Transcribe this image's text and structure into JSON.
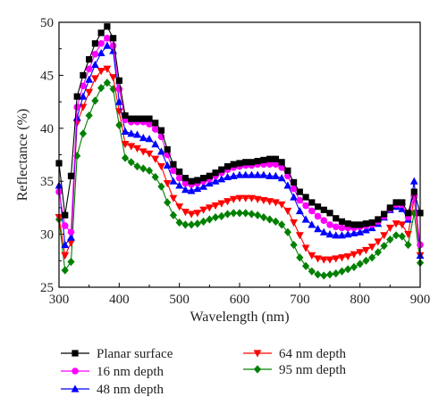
{
  "chart_data": {
    "type": "line",
    "xlabel": "Wavelength (nm)",
    "ylabel": "Reflectance (%)",
    "xlim": [
      300,
      900
    ],
    "ylim": [
      25,
      50
    ],
    "xticks": [
      300,
      400,
      500,
      600,
      700,
      800,
      900
    ],
    "yticks": [
      25,
      30,
      35,
      40,
      45,
      50
    ],
    "grid": false,
    "legend_position": "bottom",
    "x": [
      300,
      310,
      320,
      330,
      340,
      350,
      360,
      370,
      380,
      390,
      400,
      410,
      420,
      430,
      440,
      450,
      460,
      470,
      480,
      490,
      500,
      510,
      520,
      530,
      540,
      550,
      560,
      570,
      580,
      590,
      600,
      610,
      620,
      630,
      640,
      650,
      660,
      670,
      680,
      690,
      700,
      710,
      720,
      730,
      740,
      750,
      760,
      770,
      780,
      790,
      800,
      810,
      820,
      830,
      840,
      850,
      860,
      870,
      880,
      890,
      900
    ],
    "series": [
      {
        "name": "Planar surface",
        "color": "#000000",
        "marker": "square",
        "values": [
          36.7,
          31.8,
          35.5,
          43.0,
          45.0,
          46.5,
          48.0,
          49.0,
          49.6,
          48.5,
          44.5,
          41.2,
          40.9,
          40.9,
          40.9,
          40.9,
          40.5,
          39.8,
          38.0,
          36.6,
          35.9,
          35.3,
          35.0,
          35.1,
          35.3,
          35.5,
          35.8,
          36.1,
          36.4,
          36.6,
          36.7,
          36.8,
          36.8,
          36.9,
          37.0,
          37.1,
          37.1,
          36.8,
          36.0,
          34.9,
          34.0,
          33.5,
          33.0,
          32.6,
          32.3,
          32.0,
          31.5,
          31.2,
          31.0,
          30.9,
          30.9,
          31.0,
          31.1,
          31.4,
          31.9,
          32.5,
          33.0,
          33.0,
          32.0,
          34.0,
          32.0
        ]
      },
      {
        "name": "16 nm depth",
        "color": "#ff00ff",
        "marker": "circle",
        "values": [
          34.0,
          30.8,
          30.2,
          42.0,
          44.0,
          45.6,
          47.0,
          48.0,
          48.5,
          47.8,
          43.7,
          40.8,
          40.6,
          40.6,
          40.6,
          40.4,
          39.9,
          39.2,
          37.5,
          36.0,
          35.3,
          34.8,
          34.7,
          34.8,
          35.0,
          35.2,
          35.5,
          35.8,
          36.1,
          36.3,
          36.4,
          36.5,
          36.5,
          36.6,
          36.6,
          36.6,
          36.6,
          36.3,
          35.5,
          34.3,
          33.2,
          32.7,
          32.2,
          31.7,
          31.3,
          30.9,
          30.7,
          30.6,
          30.6,
          30.6,
          30.7,
          30.8,
          30.9,
          31.2,
          31.7,
          32.4,
          32.8,
          32.8,
          31.6,
          33.5,
          29.0
        ]
      },
      {
        "name": "48 nm depth",
        "color": "#0000ff",
        "marker": "triangle-up",
        "values": [
          34.6,
          29.0,
          29.7,
          41.0,
          43.0,
          44.6,
          46.0,
          47.1,
          47.8,
          47.3,
          42.5,
          39.7,
          39.5,
          39.4,
          39.1,
          39.0,
          38.5,
          37.8,
          36.5,
          35.0,
          34.6,
          34.2,
          34.1,
          34.3,
          34.5,
          34.8,
          35.0,
          35.2,
          35.4,
          35.5,
          35.6,
          35.6,
          35.6,
          35.6,
          35.6,
          35.5,
          35.5,
          35.3,
          34.6,
          33.5,
          32.2,
          31.4,
          30.9,
          30.5,
          30.2,
          30.0,
          29.9,
          29.9,
          30.0,
          30.1,
          30.2,
          30.4,
          30.6,
          31.0,
          31.6,
          32.3,
          32.6,
          32.4,
          31.4,
          35.0,
          28.0
        ]
      },
      {
        "name": "64 nm depth",
        "color": "#ff0000",
        "marker": "triangle-down",
        "values": [
          31.6,
          28.0,
          29.2,
          40.5,
          42.0,
          43.4,
          44.7,
          45.4,
          45.6,
          44.8,
          41.6,
          38.5,
          38.3,
          38.1,
          37.8,
          37.6,
          37.1,
          36.4,
          34.8,
          33.4,
          32.6,
          32.1,
          31.9,
          32.0,
          32.3,
          32.5,
          32.7,
          32.9,
          33.1,
          33.3,
          33.4,
          33.4,
          33.4,
          33.3,
          33.2,
          33.1,
          33.0,
          32.8,
          32.2,
          31.1,
          29.9,
          28.7,
          28.0,
          27.7,
          27.6,
          27.6,
          27.7,
          27.8,
          27.9,
          28.1,
          28.3,
          28.5,
          28.8,
          29.3,
          29.9,
          30.6,
          31.0,
          30.9,
          30.0,
          33.4,
          28.0
        ]
      },
      {
        "name": "95 nm depth",
        "color": "#008000",
        "marker": "diamond",
        "values": [
          31.4,
          26.6,
          27.4,
          37.4,
          39.5,
          41.2,
          42.6,
          43.8,
          44.3,
          43.7,
          40.3,
          37.2,
          36.8,
          36.4,
          36.2,
          36.0,
          35.4,
          34.5,
          33.0,
          31.8,
          31.1,
          30.9,
          30.9,
          31.0,
          31.2,
          31.4,
          31.6,
          31.7,
          31.9,
          32.0,
          32.0,
          32.0,
          31.9,
          31.8,
          31.6,
          31.4,
          31.2,
          30.9,
          30.2,
          29.0,
          27.8,
          27.0,
          26.5,
          26.2,
          26.1,
          26.2,
          26.3,
          26.5,
          26.7,
          26.9,
          27.2,
          27.5,
          27.8,
          28.3,
          28.9,
          29.5,
          29.9,
          29.8,
          29.0,
          32.0,
          27.3
        ]
      }
    ]
  }
}
